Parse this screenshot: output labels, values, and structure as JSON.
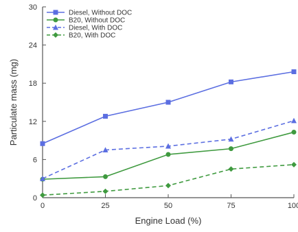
{
  "chart_data": {
    "type": "line",
    "title": "",
    "xlabel": "Engine Load (%)",
    "ylabel": "Particulate mass (mg)",
    "x": [
      0,
      25,
      50,
      75,
      100
    ],
    "x_tick_labels": [
      "0",
      "25",
      "50",
      "75",
      "100"
    ],
    "y_tick_labels": [
      "0",
      "6",
      "12",
      "18",
      "24",
      "30"
    ],
    "xlim": [
      0,
      100
    ],
    "ylim": [
      0,
      30
    ],
    "grid": false,
    "legend_position": "top-left",
    "series": [
      {
        "name": "Diesel, Without DOC",
        "values": [
          8.5,
          12.8,
          15.0,
          18.2,
          19.8
        ],
        "color": "#5b6ee1",
        "dashed": false,
        "marker": "square"
      },
      {
        "name": "B20, Without DOC",
        "values": [
          2.9,
          3.3,
          6.8,
          7.7,
          10.3
        ],
        "color": "#3f9a3f",
        "dashed": false,
        "marker": "circle"
      },
      {
        "name": "Diesel, With DOC",
        "values": [
          3.0,
          7.5,
          8.1,
          9.2,
          12.1
        ],
        "color": "#5b6ee1",
        "dashed": true,
        "marker": "triangle"
      },
      {
        "name": "B20, With DOC",
        "values": [
          0.4,
          1.0,
          1.9,
          4.5,
          5.2
        ],
        "color": "#3f9a3f",
        "dashed": true,
        "marker": "diamond"
      }
    ]
  }
}
